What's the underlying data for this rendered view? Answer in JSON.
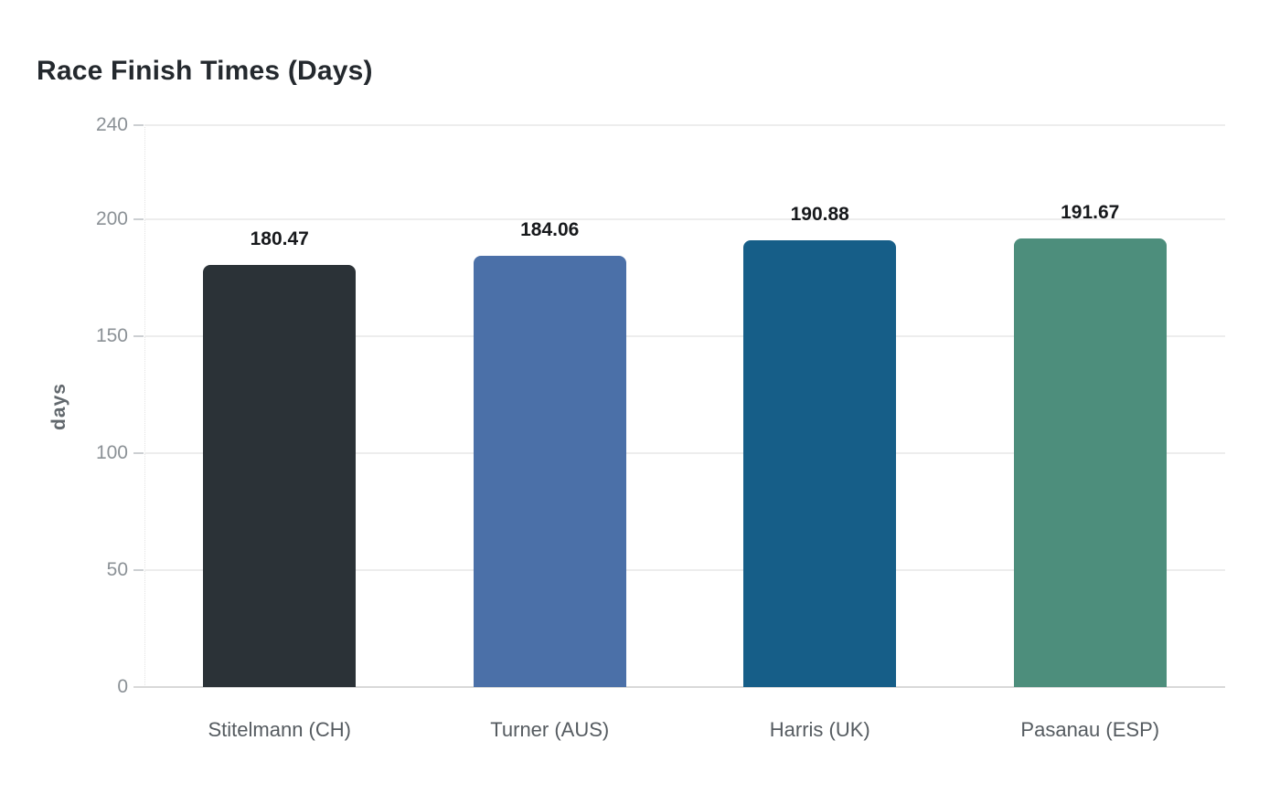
{
  "page": {
    "background": "#ffffff"
  },
  "chart_data": {
    "type": "bar",
    "title": "Race Finish Times (Days)",
    "ylabel": "days",
    "xlabel": "",
    "categories": [
      "Stitelmann (CH)",
      "Turner (AUS)",
      "Harris (UK)",
      "Pasanau (ESP)"
    ],
    "values": [
      180.47,
      184.06,
      190.88,
      191.67
    ],
    "value_labels": [
      "180.47",
      "184.06",
      "190.88",
      "191.67"
    ],
    "bar_colors": [
      "#2b3237",
      "#4b70a8",
      "#165e88",
      "#4d8e7c"
    ],
    "ylim": [
      0,
      240
    ],
    "yticks": [
      0,
      50,
      100,
      150,
      200,
      240
    ],
    "ytick_labels": [
      "0",
      "50",
      "100",
      "150",
      "200",
      "240"
    ],
    "grid": "horizontal-light",
    "legend": "none",
    "colors": {
      "title": "#24292e",
      "tick_label": "#8b9196",
      "axis_label": "#62686d",
      "category_label": "#555b60",
      "value_label": "#17191c",
      "gridline": "#ededed",
      "axis_line": "#d9d9d9",
      "tick_dash": "#cccfd2"
    }
  }
}
